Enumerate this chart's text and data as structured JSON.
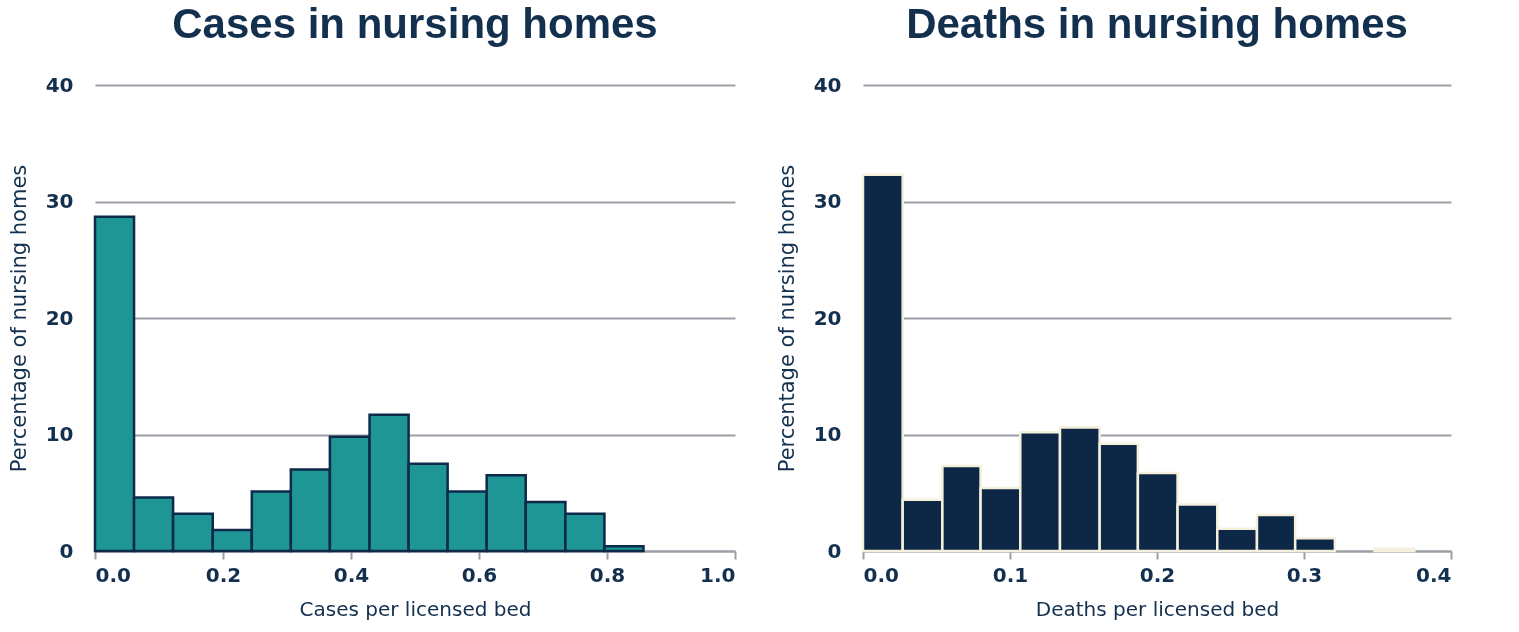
{
  "chart_data": [
    {
      "type": "histogram",
      "title": "Cases in nursing homes",
      "xlabel": "Cases per licensed bed",
      "ylabel": "Percentage of nursing homes",
      "bins": [
        0,
        0.061,
        0.122,
        0.184,
        0.245,
        0.306,
        0.367,
        0.429,
        0.49,
        0.551,
        0.612,
        0.673,
        0.735,
        0.796,
        0.857
      ],
      "values": [
        28.7,
        4.6,
        3.2,
        1.8,
        5.1,
        7.0,
        9.8,
        11.7,
        7.5,
        5.1,
        6.5,
        4.2,
        3.2,
        0.4
      ],
      "color": "#1e9696",
      "xlim": [
        0,
        1
      ],
      "ylim": [
        0,
        40
      ],
      "xticks": [
        {
          "value": 0,
          "label": "0.0"
        },
        {
          "value": 0.2,
          "label": "0.2"
        },
        {
          "value": 0.4,
          "label": "0.4"
        },
        {
          "value": 0.6,
          "label": "0.6"
        },
        {
          "value": 0.8,
          "label": "0.8"
        },
        {
          "value": 1,
          "label": "1.0"
        }
      ],
      "yticks": [
        0,
        10,
        20,
        30,
        40
      ],
      "grid": "y"
    },
    {
      "type": "histogram",
      "title": "Deaths in nursing homes",
      "xlabel": "Deaths per licensed bed",
      "ylabel": "Percentage of nursing homes",
      "bins": [
        0,
        0.027,
        0.054,
        0.08,
        0.107,
        0.134,
        0.161,
        0.187,
        0.214,
        0.241,
        0.268,
        0.294,
        0.321,
        0.348,
        0.375
      ],
      "values": [
        32.3,
        4.4,
        7.3,
        5.4,
        10.2,
        10.6,
        9.2,
        6.7,
        4.0,
        1.9,
        3.1,
        1.1,
        0,
        0.2
      ],
      "color": "#0d2847",
      "xlim": [
        0,
        0.4
      ],
      "ylim": [
        0,
        40
      ],
      "xticks": [
        {
          "value": 0,
          "label": "0.0"
        },
        {
          "value": 0.1,
          "label": "0.1"
        },
        {
          "value": 0.2,
          "label": "0.2"
        },
        {
          "value": 0.3,
          "label": "0.3"
        },
        {
          "value": 0.4,
          "label": "0.4"
        }
      ],
      "yticks": [
        0,
        10,
        20,
        30,
        40
      ],
      "grid": "y"
    }
  ]
}
